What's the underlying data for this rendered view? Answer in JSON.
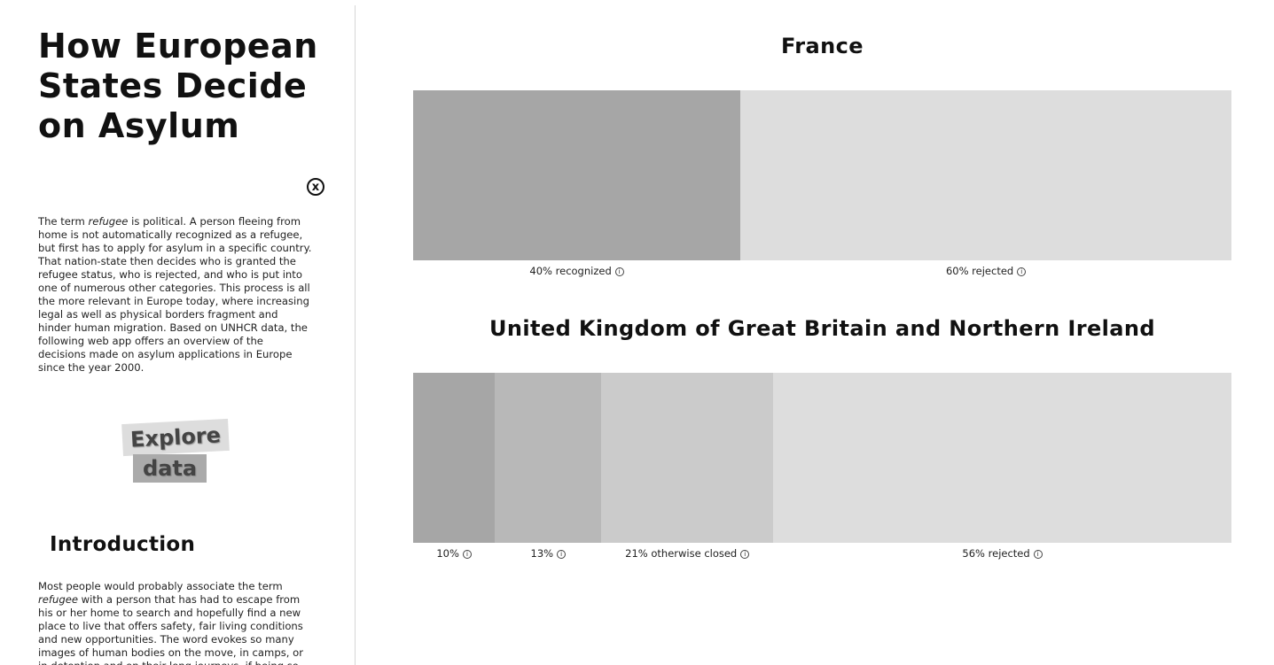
{
  "sidebar": {
    "title": "How European States Decide on Asylum",
    "close_symbol": "x",
    "intro": {
      "before": "The term ",
      "emphasis": "refugee",
      "after": " is political. A person fleeing from home is not automatically recognized as a refugee, but first has to apply for asylum in a specific country. That nation-state then decides who is granted the refugee status, who is rejected, and who is put into one of numerous other categories. This process is all the more relevant in Europe today, where increasing legal as well as physical borders fragment and hinder human migration. Based on UNHCR data, the following web app offers an overview of the decisions made on asylum applications in Europe since the year 2000."
    },
    "explore_word1": "Explore",
    "explore_word2": "data",
    "section_heading": "Introduction",
    "body": {
      "before": "Most people would probably associate the term ",
      "emphasis": "refugee",
      "after": " with a person that has had to escape from his or her home to search and hopefully find a new place to live that offers safety, fair living conditions and new opportunities. The word evokes so many images of human bodies on the move, in camps, or in detention and on their long journeys, if being so"
    }
  },
  "chart_data": [
    {
      "type": "bar",
      "title": "France",
      "stacked": true,
      "segments": [
        {
          "label": "40% recognized",
          "value": 40,
          "color": "#a6a6a6",
          "info_icon": true
        },
        {
          "label": "60% rejected",
          "value": 60,
          "color": "#dddddd",
          "info_icon": true
        }
      ]
    },
    {
      "type": "bar",
      "title": "United Kingdom of Great Britain and Northern Ireland",
      "stacked": true,
      "segments": [
        {
          "label": "10%",
          "value": 10,
          "color": "#a6a6a6",
          "info_icon": true
        },
        {
          "label": "13%",
          "value": 13,
          "color": "#b8b8b8",
          "info_icon": true
        },
        {
          "label": "21% otherwise closed",
          "value": 21,
          "color": "#cbcbcb",
          "info_icon": true
        },
        {
          "label": "56% rejected",
          "value": 56,
          "color": "#dddddd",
          "info_icon": true
        }
      ]
    }
  ],
  "info_symbol": "i"
}
